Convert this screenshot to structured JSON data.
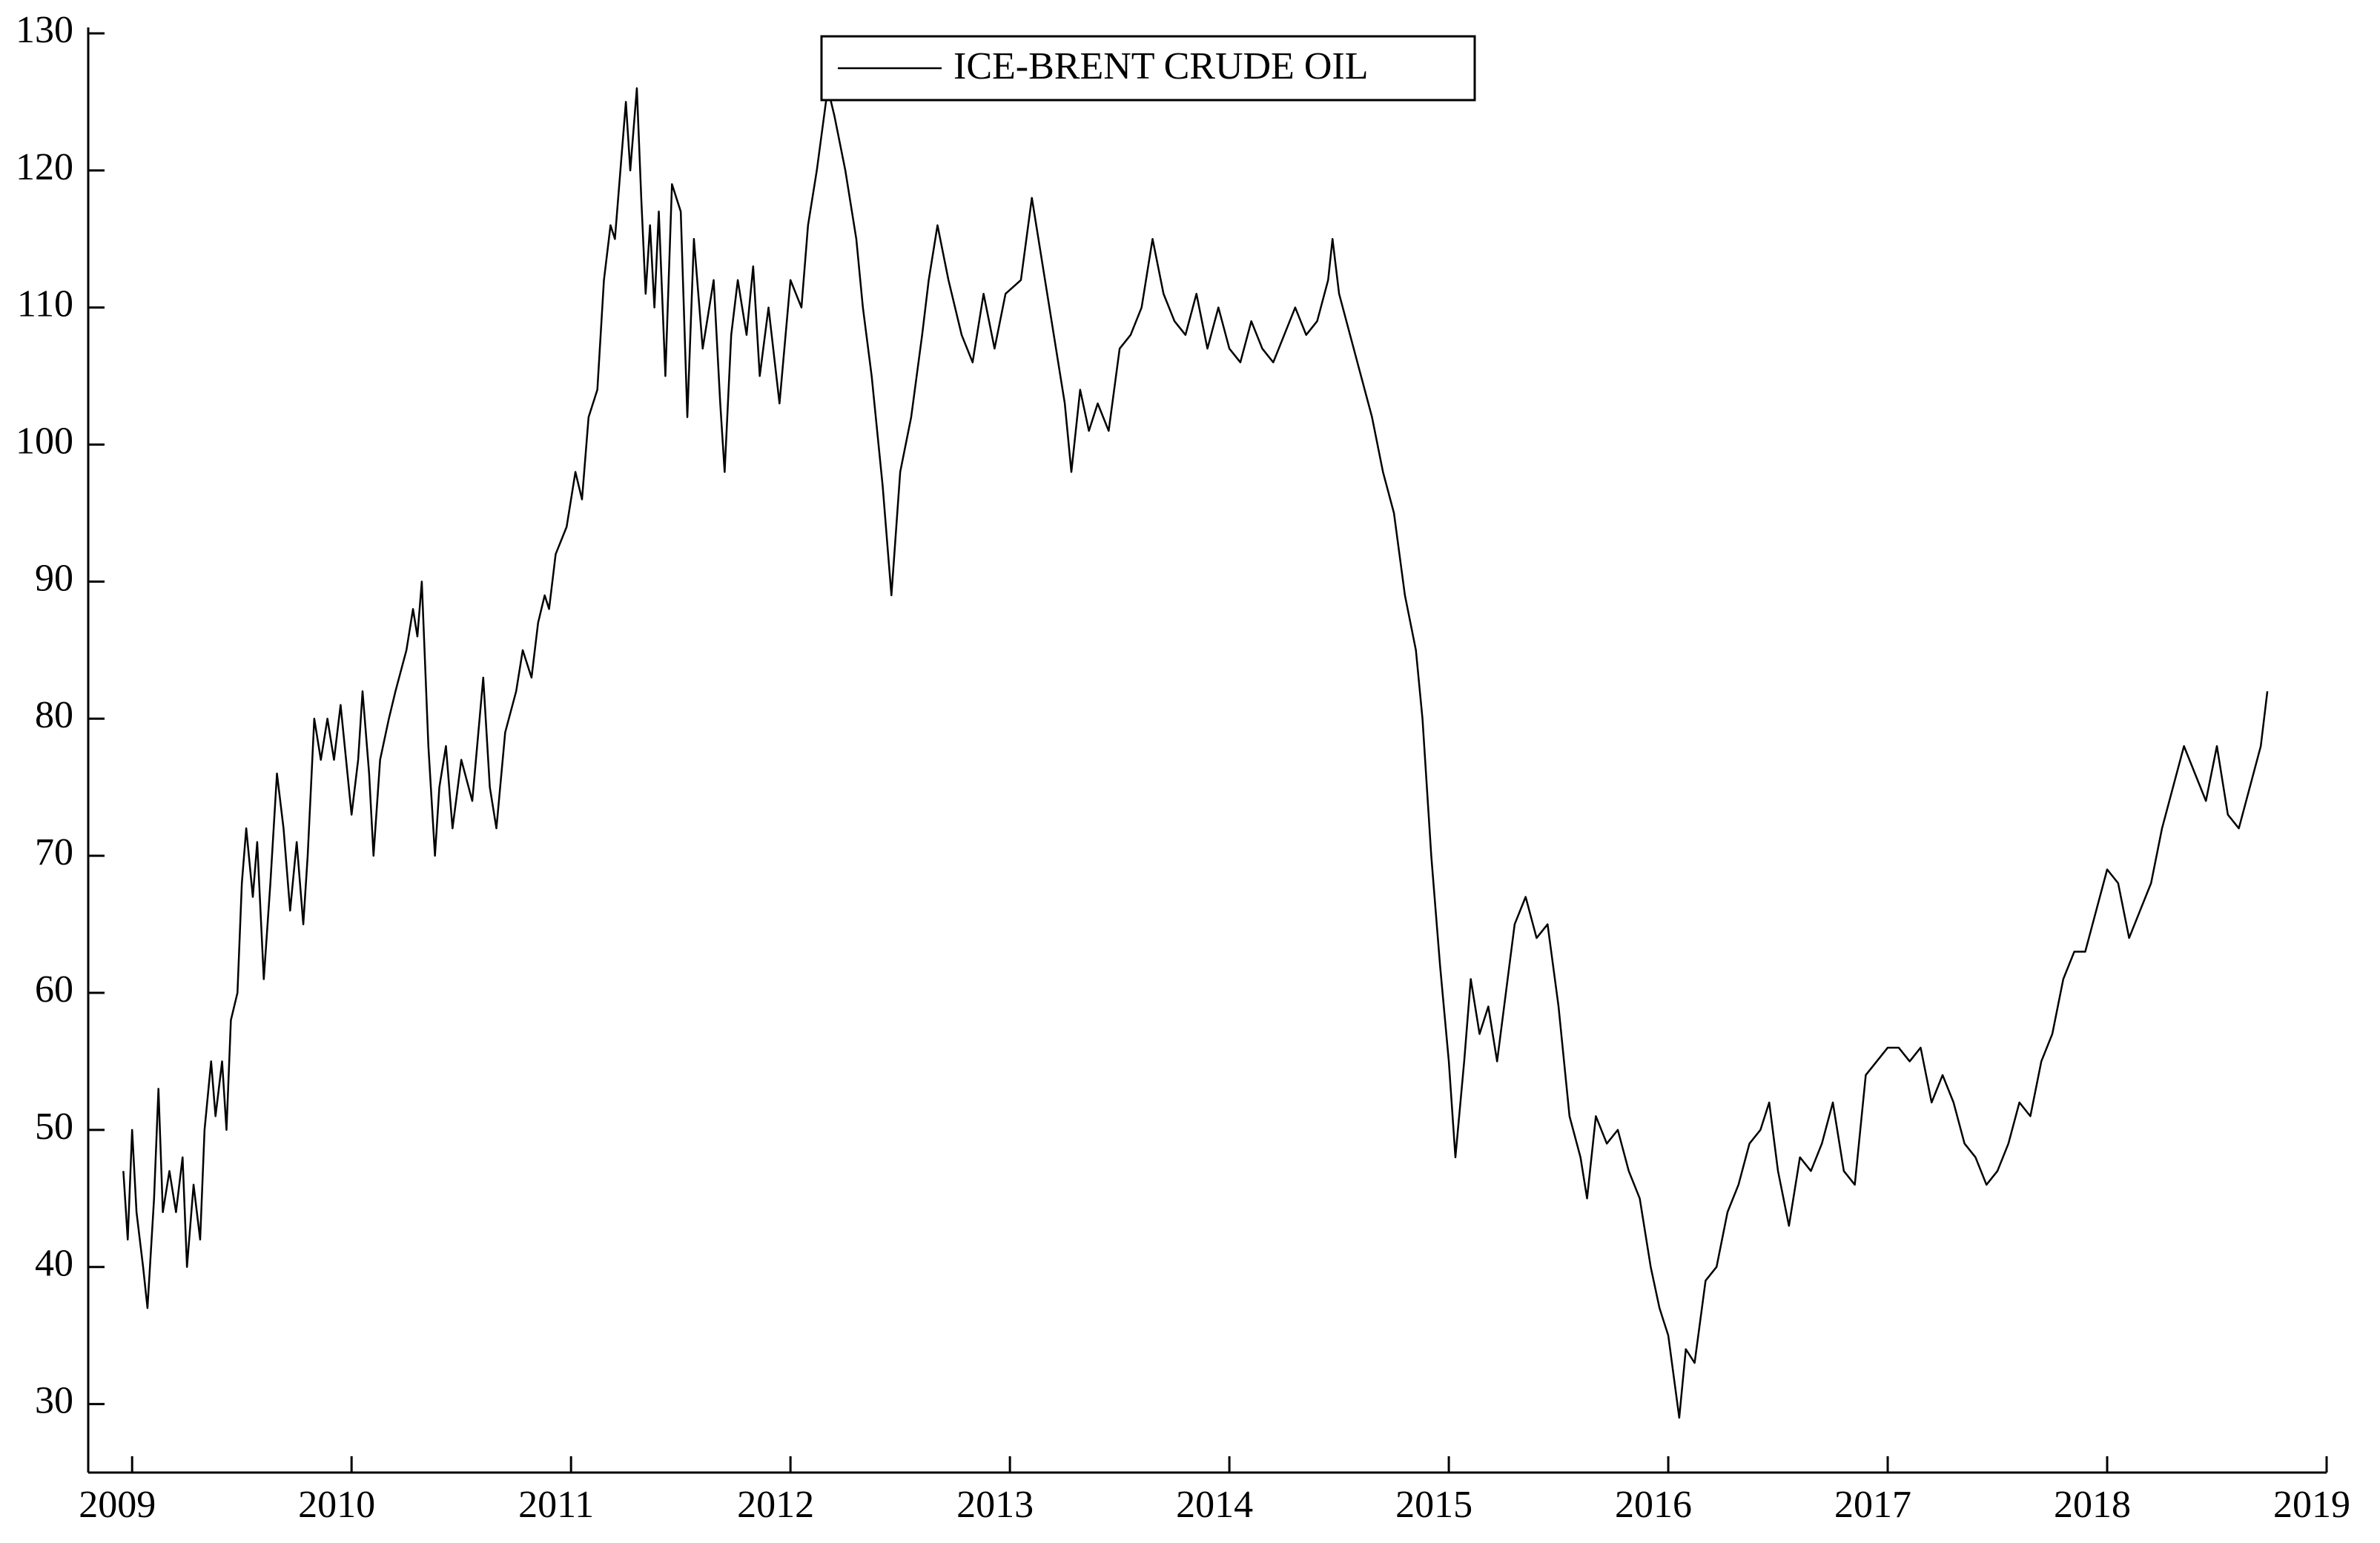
{
  "chart_data": {
    "type": "line",
    "x": [
      2008.96,
      2008.98,
      2009.0,
      2009.02,
      2009.05,
      2009.07,
      2009.1,
      2009.12,
      2009.14,
      2009.17,
      2009.2,
      2009.23,
      2009.25,
      2009.28,
      2009.31,
      2009.33,
      2009.36,
      2009.38,
      2009.41,
      2009.43,
      2009.45,
      2009.48,
      2009.5,
      2009.52,
      2009.55,
      2009.57,
      2009.6,
      2009.63,
      2009.66,
      2009.69,
      2009.72,
      2009.75,
      2009.78,
      2009.8,
      2009.83,
      2009.86,
      2009.89,
      2009.92,
      2009.95,
      2010.0,
      2010.03,
      2010.05,
      2010.08,
      2010.1,
      2010.13,
      2010.17,
      2010.2,
      2010.25,
      2010.28,
      2010.3,
      2010.32,
      2010.35,
      2010.38,
      2010.4,
      2010.43,
      2010.46,
      2010.5,
      2010.55,
      2010.6,
      2010.63,
      2010.66,
      2010.7,
      2010.75,
      2010.78,
      2010.82,
      2010.85,
      2010.88,
      2010.9,
      2010.93,
      2010.98,
      2011.02,
      2011.05,
      2011.08,
      2011.12,
      2011.15,
      2011.18,
      2011.2,
      2011.22,
      2011.25,
      2011.27,
      2011.3,
      2011.32,
      2011.34,
      2011.36,
      2011.38,
      2011.4,
      2011.43,
      2011.46,
      2011.5,
      2011.53,
      2011.56,
      2011.6,
      2011.65,
      2011.68,
      2011.7,
      2011.73,
      2011.76,
      2011.8,
      2011.83,
      2011.86,
      2011.9,
      2011.95,
      2012.0,
      2012.05,
      2012.08,
      2012.12,
      2012.17,
      2012.2,
      2012.25,
      2012.3,
      2012.33,
      2012.37,
      2012.42,
      2012.46,
      2012.5,
      2012.55,
      2012.6,
      2012.63,
      2012.67,
      2012.72,
      2012.78,
      2012.83,
      2012.88,
      2012.93,
      2012.98,
      2013.05,
      2013.1,
      2013.15,
      2013.2,
      2013.25,
      2013.28,
      2013.32,
      2013.36,
      2013.4,
      2013.45,
      2013.5,
      2013.55,
      2013.6,
      2013.65,
      2013.7,
      2013.75,
      2013.8,
      2013.85,
      2013.9,
      2013.95,
      2014.0,
      2014.05,
      2014.1,
      2014.15,
      2014.2,
      2014.25,
      2014.3,
      2014.35,
      2014.4,
      2014.45,
      2014.47,
      2014.5,
      2014.55,
      2014.6,
      2014.65,
      2014.7,
      2014.75,
      2014.8,
      2014.85,
      2014.88,
      2014.92,
      2014.96,
      2015.0,
      2015.03,
      2015.07,
      2015.1,
      2015.14,
      2015.18,
      2015.22,
      2015.26,
      2015.3,
      2015.35,
      2015.4,
      2015.45,
      2015.5,
      2015.55,
      2015.6,
      2015.63,
      2015.67,
      2015.72,
      2015.77,
      2015.82,
      2015.87,
      2015.92,
      2015.96,
      2016.0,
      2016.05,
      2016.08,
      2016.12,
      2016.17,
      2016.22,
      2016.27,
      2016.32,
      2016.37,
      2016.42,
      2016.46,
      2016.5,
      2016.55,
      2016.6,
      2016.65,
      2016.7,
      2016.75,
      2016.8,
      2016.85,
      2016.9,
      2016.95,
      2017.0,
      2017.05,
      2017.1,
      2017.15,
      2017.2,
      2017.25,
      2017.3,
      2017.35,
      2017.4,
      2017.45,
      2017.5,
      2017.55,
      2017.6,
      2017.65,
      2017.7,
      2017.75,
      2017.8,
      2017.85,
      2017.9,
      2017.95,
      2018.0,
      2018.05,
      2018.1,
      2018.15,
      2018.2,
      2018.25,
      2018.3,
      2018.35,
      2018.4,
      2018.45,
      2018.5,
      2018.55,
      2018.6,
      2018.65,
      2018.7,
      2018.73
    ],
    "series": [
      {
        "name": "ICE-BRENT CRUDE OIL",
        "color": "#000000",
        "values": [
          47,
          42,
          50,
          44,
          40,
          37,
          45,
          53,
          44,
          47,
          44,
          48,
          40,
          46,
          42,
          50,
          55,
          51,
          55,
          50,
          58,
          60,
          68,
          72,
          67,
          71,
          61,
          68,
          76,
          72,
          66,
          71,
          65,
          70,
          80,
          77,
          80,
          77,
          81,
          73,
          77,
          82,
          76,
          70,
          77,
          80,
          82,
          85,
          88,
          86,
          90,
          78,
          70,
          75,
          78,
          72,
          77,
          74,
          83,
          75,
          72,
          79,
          82,
          85,
          83,
          87,
          89,
          88,
          92,
          94,
          98,
          96,
          102,
          104,
          112,
          116,
          115,
          119,
          125,
          120,
          126,
          118,
          111,
          116,
          110,
          117,
          105,
          119,
          117,
          102,
          115,
          107,
          112,
          103,
          98,
          108,
          112,
          108,
          113,
          105,
          110,
          103,
          112,
          110,
          116,
          120,
          126,
          124,
          120,
          115,
          110,
          105,
          97,
          89,
          98,
          102,
          108,
          112,
          116,
          112,
          108,
          106,
          111,
          107,
          111,
          112,
          118,
          113,
          108,
          103,
          98,
          104,
          101,
          103,
          101,
          107,
          108,
          110,
          115,
          111,
          109,
          108,
          111,
          107,
          110,
          107,
          106,
          109,
          107,
          106,
          108,
          110,
          108,
          109,
          112,
          115,
          111,
          108,
          105,
          102,
          98,
          95,
          89,
          85,
          80,
          70,
          62,
          55,
          48,
          55,
          61,
          57,
          59,
          55,
          60,
          65,
          67,
          64,
          65,
          59,
          51,
          48,
          45,
          51,
          49,
          50,
          47,
          45,
          40,
          37,
          35,
          29,
          34,
          33,
          39,
          40,
          44,
          46,
          49,
          50,
          52,
          47,
          43,
          48,
          47,
          49,
          52,
          47,
          46,
          54,
          55,
          56,
          56,
          55,
          56,
          52,
          54,
          52,
          49,
          48,
          46,
          47,
          49,
          52,
          51,
          55,
          57,
          61,
          63,
          63,
          66,
          69,
          68,
          64,
          66,
          68,
          72,
          75,
          78,
          76,
          74,
          78,
          73,
          72,
          75,
          78,
          82
        ]
      }
    ],
    "xlim": [
      2008.8,
      2019
    ],
    "xticks": [
      2009,
      2010,
      2011,
      2012,
      2013,
      2014,
      2015,
      2016,
      2017,
      2018,
      2019
    ],
    "ylim": [
      25,
      130
    ],
    "yticks": [
      30,
      40,
      50,
      60,
      70,
      80,
      90,
      100,
      110,
      120,
      130
    ],
    "grid": false,
    "legend": "upper center"
  }
}
